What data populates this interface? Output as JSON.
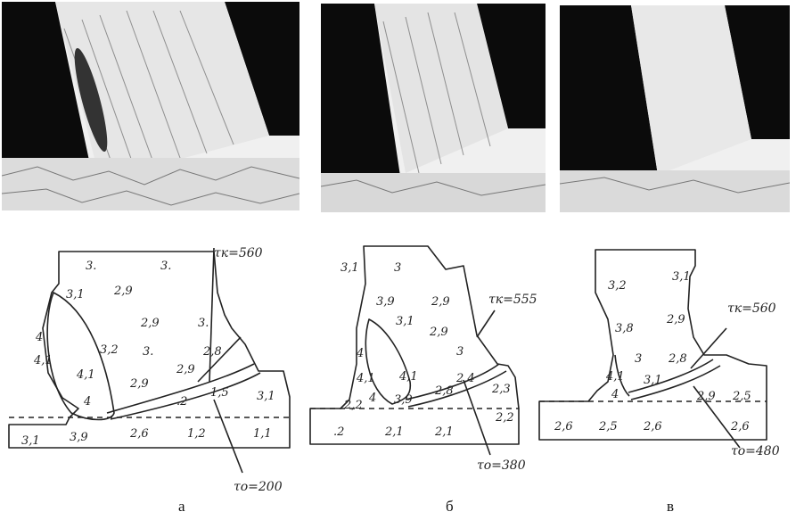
{
  "captions": [
    "а",
    "б",
    "в"
  ],
  "panel_a": {
    "values": [
      "3.",
      "3.",
      "3,1",
      "2,9",
      "2,9",
      "3.",
      "4",
      "4,1",
      "3,2",
      "3.",
      "2,8",
      "4,1",
      "2,9",
      "2,9",
      "4",
      ".2",
      "1,5",
      "3,1",
      "3,9",
      "2,6",
      "1,2",
      "1,1",
      "3,1"
    ],
    "tk_label": "τк=560",
    "to_label": "τо=200"
  },
  "panel_b": {
    "values": [
      "3,1",
      "3",
      "3,9",
      "2,9",
      "3,1",
      "2,9",
      "4",
      "4,1",
      "4,1",
      "3",
      "2,2",
      "4",
      "3,9",
      "2,8",
      "2,4",
      "2,3",
      "2,2",
      ".2",
      "2,1",
      "2,1"
    ],
    "tk_label": "τк=555",
    "to_label": "τо=380"
  },
  "panel_c": {
    "values": [
      "3,2",
      "3,1",
      "3,8",
      "2,9",
      "3",
      "2,8",
      "4,1",
      "4",
      "3,1",
      "2,9",
      "2,5",
      "2,6",
      "2,5",
      "2,6",
      "2,6"
    ],
    "tk_label": "τк=560",
    "to_label": "τо=480"
  }
}
